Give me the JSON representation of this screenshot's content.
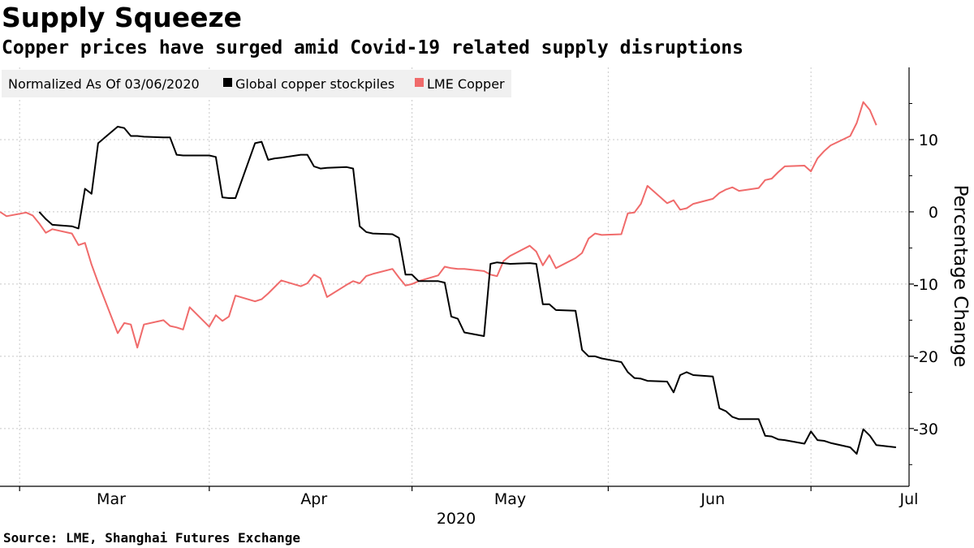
{
  "title": "Supply Squeeze",
  "subtitle": "Copper prices have surged amid Covid-19 related supply disruptions",
  "source": "Source: LME, Shanghai Futures Exchange",
  "colors": {
    "stockpiles": "#000000",
    "lme": "#f06b6b",
    "legend_bg": "#f0f0f0",
    "grid": "#c8c8c8"
  },
  "chart_data": {
    "type": "line",
    "legend_position": "top-left",
    "legend_note": "Normalized As Of 03/06/2020",
    "ylabel": "Percentage Change",
    "y_axis_side": "right",
    "ylim": [
      -38,
      20
    ],
    "y_ticks": [
      10,
      0,
      -10,
      -20,
      -30
    ],
    "y_tick_labels": [
      "10",
      "0",
      "-10",
      "-20",
      "-30"
    ],
    "xlim": [
      "2020-02-13",
      "2020-07-01"
    ],
    "x_ticks": [
      {
        "label": "Mar",
        "date": "2020-03-01"
      },
      {
        "label": "Apr",
        "date": "2020-04-01"
      },
      {
        "label": "May",
        "date": "2020-05-01"
      },
      {
        "label": "Jun",
        "date": "2020-06-01"
      },
      {
        "label": "Jul",
        "date": "2020-07-01"
      }
    ],
    "x_gridlines": [
      "2020-02-16",
      "2020-03-16",
      "2020-04-16",
      "2020-05-16",
      "2020-06-16"
    ],
    "x_year_label": "2020",
    "grid": true,
    "series": [
      {
        "name": "Global copper stockpiles",
        "points": [
          [
            "2020-02-19",
            0.0
          ],
          [
            "2020-02-20",
            -1.0
          ],
          [
            "2020-02-21",
            -1.8
          ],
          [
            "2020-02-24",
            -2.0
          ],
          [
            "2020-02-25",
            -2.3
          ],
          [
            "2020-02-26",
            3.2
          ],
          [
            "2020-02-27",
            2.5
          ],
          [
            "2020-02-28",
            9.5
          ],
          [
            "2020-03-02",
            11.8
          ],
          [
            "2020-03-03",
            11.6
          ],
          [
            "2020-03-04",
            10.5
          ],
          [
            "2020-03-05",
            10.5
          ],
          [
            "2020-03-06",
            10.4
          ],
          [
            "2020-03-09",
            10.3
          ],
          [
            "2020-03-10",
            10.3
          ],
          [
            "2020-03-11",
            7.9
          ],
          [
            "2020-03-12",
            7.8
          ],
          [
            "2020-03-13",
            7.8
          ],
          [
            "2020-03-16",
            7.8
          ],
          [
            "2020-03-17",
            7.6
          ],
          [
            "2020-03-18",
            2.0
          ],
          [
            "2020-03-19",
            1.9
          ],
          [
            "2020-03-20",
            1.9
          ],
          [
            "2020-03-23",
            9.5
          ],
          [
            "2020-03-24",
            9.7
          ],
          [
            "2020-03-25",
            7.2
          ],
          [
            "2020-03-26",
            7.4
          ],
          [
            "2020-03-27",
            7.5
          ],
          [
            "2020-03-30",
            7.9
          ],
          [
            "2020-03-31",
            7.9
          ],
          [
            "2020-04-01",
            6.3
          ],
          [
            "2020-04-02",
            6.0
          ],
          [
            "2020-04-03",
            6.1
          ],
          [
            "2020-04-06",
            6.2
          ],
          [
            "2020-04-07",
            6.0
          ],
          [
            "2020-04-08",
            -2.0
          ],
          [
            "2020-04-09",
            -2.8
          ],
          [
            "2020-04-10",
            -3.0
          ],
          [
            "2020-04-13",
            -3.1
          ],
          [
            "2020-04-14",
            -3.6
          ],
          [
            "2020-04-15",
            -8.7
          ],
          [
            "2020-04-16",
            -8.7
          ],
          [
            "2020-04-17",
            -9.6
          ],
          [
            "2020-04-20",
            -9.6
          ],
          [
            "2020-04-21",
            -9.8
          ],
          [
            "2020-04-22",
            -14.5
          ],
          [
            "2020-04-23",
            -14.8
          ],
          [
            "2020-04-24",
            -16.7
          ],
          [
            "2020-04-27",
            -17.2
          ],
          [
            "2020-04-28",
            -7.2
          ],
          [
            "2020-04-29",
            -7.0
          ],
          [
            "2020-04-30",
            -7.1
          ],
          [
            "2020-05-01",
            -7.2
          ],
          [
            "2020-05-04",
            -7.1
          ],
          [
            "2020-05-05",
            -7.2
          ],
          [
            "2020-05-06",
            -12.8
          ],
          [
            "2020-05-07",
            -12.8
          ],
          [
            "2020-05-08",
            -13.6
          ],
          [
            "2020-05-11",
            -13.7
          ],
          [
            "2020-05-12",
            -19.1
          ],
          [
            "2020-05-13",
            -20.0
          ],
          [
            "2020-05-14",
            -20.0
          ],
          [
            "2020-05-15",
            -20.3
          ],
          [
            "2020-05-18",
            -20.8
          ],
          [
            "2020-05-19",
            -22.2
          ],
          [
            "2020-05-20",
            -23.0
          ],
          [
            "2020-05-21",
            -23.1
          ],
          [
            "2020-05-22",
            -23.4
          ],
          [
            "2020-05-25",
            -23.5
          ],
          [
            "2020-05-26",
            -25.0
          ],
          [
            "2020-05-27",
            -22.6
          ],
          [
            "2020-05-28",
            -22.2
          ],
          [
            "2020-05-29",
            -22.6
          ],
          [
            "2020-06-01",
            -22.8
          ],
          [
            "2020-06-02",
            -27.2
          ],
          [
            "2020-06-03",
            -27.6
          ],
          [
            "2020-06-04",
            -28.4
          ],
          [
            "2020-06-05",
            -28.7
          ],
          [
            "2020-06-08",
            -28.7
          ],
          [
            "2020-06-09",
            -31.0
          ],
          [
            "2020-06-10",
            -31.1
          ],
          [
            "2020-06-11",
            -31.5
          ],
          [
            "2020-06-12",
            -31.6
          ],
          [
            "2020-06-15",
            -32.1
          ],
          [
            "2020-06-16",
            -30.4
          ],
          [
            "2020-06-17",
            -31.6
          ],
          [
            "2020-06-18",
            -31.7
          ],
          [
            "2020-06-19",
            -32.0
          ],
          [
            "2020-06-22",
            -32.6
          ],
          [
            "2020-06-23",
            -33.5
          ],
          [
            "2020-06-24",
            -30.1
          ],
          [
            "2020-06-25",
            -31.0
          ],
          [
            "2020-06-26",
            -32.3
          ],
          [
            "2020-06-29",
            -32.6
          ]
        ]
      },
      {
        "name": "LME Copper",
        "points": [
          [
            "2020-02-13",
            0.0
          ],
          [
            "2020-02-14",
            -0.6
          ],
          [
            "2020-02-17",
            -0.1
          ],
          [
            "2020-02-18",
            -0.5
          ],
          [
            "2020-02-19",
            -1.6
          ],
          [
            "2020-02-20",
            -2.9
          ],
          [
            "2020-02-21",
            -2.4
          ],
          [
            "2020-02-24",
            -3.0
          ],
          [
            "2020-02-25",
            -4.6
          ],
          [
            "2020-02-26",
            -4.3
          ],
          [
            "2020-02-27",
            -7.3
          ],
          [
            "2020-02-28",
            -9.8
          ],
          [
            "2020-03-02",
            -16.8
          ],
          [
            "2020-03-03",
            -15.4
          ],
          [
            "2020-03-04",
            -15.6
          ],
          [
            "2020-03-05",
            -18.8
          ],
          [
            "2020-03-06",
            -15.6
          ],
          [
            "2020-03-09",
            -15.0
          ],
          [
            "2020-03-10",
            -15.8
          ],
          [
            "2020-03-11",
            -16.0
          ],
          [
            "2020-03-12",
            -16.3
          ],
          [
            "2020-03-13",
            -13.2
          ],
          [
            "2020-03-16",
            -15.9
          ],
          [
            "2020-03-17",
            -14.3
          ],
          [
            "2020-03-18",
            -15.1
          ],
          [
            "2020-03-19",
            -14.5
          ],
          [
            "2020-03-20",
            -11.6
          ],
          [
            "2020-03-23",
            -12.4
          ],
          [
            "2020-03-24",
            -12.1
          ],
          [
            "2020-03-25",
            -11.3
          ],
          [
            "2020-03-26",
            -10.4
          ],
          [
            "2020-03-27",
            -9.5
          ],
          [
            "2020-03-30",
            -10.3
          ],
          [
            "2020-03-31",
            -9.9
          ],
          [
            "2020-04-01",
            -8.7
          ],
          [
            "2020-04-02",
            -9.2
          ],
          [
            "2020-04-03",
            -11.8
          ],
          [
            "2020-04-06",
            -10.1
          ],
          [
            "2020-04-07",
            -9.6
          ],
          [
            "2020-04-08",
            -9.9
          ],
          [
            "2020-04-09",
            -8.9
          ],
          [
            "2020-04-10",
            -8.6
          ],
          [
            "2020-04-13",
            -7.9
          ],
          [
            "2020-04-14",
            -9.1
          ],
          [
            "2020-04-15",
            -10.2
          ],
          [
            "2020-04-16",
            -10.0
          ],
          [
            "2020-04-17",
            -9.6
          ],
          [
            "2020-04-20",
            -8.8
          ],
          [
            "2020-04-21",
            -7.6
          ],
          [
            "2020-04-22",
            -7.8
          ],
          [
            "2020-04-23",
            -7.9
          ],
          [
            "2020-04-24",
            -7.9
          ],
          [
            "2020-04-27",
            -8.2
          ],
          [
            "2020-04-28",
            -8.7
          ],
          [
            "2020-04-29",
            -8.9
          ],
          [
            "2020-04-30",
            -6.8
          ],
          [
            "2020-05-01",
            -6.1
          ],
          [
            "2020-05-04",
            -4.7
          ],
          [
            "2020-05-05",
            -5.5
          ],
          [
            "2020-05-06",
            -7.4
          ],
          [
            "2020-05-07",
            -6.0
          ],
          [
            "2020-05-08",
            -7.8
          ],
          [
            "2020-05-11",
            -6.4
          ],
          [
            "2020-05-12",
            -5.7
          ],
          [
            "2020-05-13",
            -3.7
          ],
          [
            "2020-05-14",
            -3.0
          ],
          [
            "2020-05-15",
            -3.2
          ],
          [
            "2020-05-18",
            -3.1
          ],
          [
            "2020-05-19",
            -0.2
          ],
          [
            "2020-05-20",
            -0.1
          ],
          [
            "2020-05-21",
            1.1
          ],
          [
            "2020-05-22",
            3.6
          ],
          [
            "2020-05-25",
            1.2
          ],
          [
            "2020-05-26",
            1.6
          ],
          [
            "2020-05-27",
            0.3
          ],
          [
            "2020-05-28",
            0.5
          ],
          [
            "2020-05-29",
            1.1
          ],
          [
            "2020-06-01",
            1.8
          ],
          [
            "2020-06-02",
            2.6
          ],
          [
            "2020-06-03",
            3.1
          ],
          [
            "2020-06-04",
            3.4
          ],
          [
            "2020-06-05",
            2.9
          ],
          [
            "2020-06-08",
            3.3
          ],
          [
            "2020-06-09",
            4.4
          ],
          [
            "2020-06-10",
            4.6
          ],
          [
            "2020-06-11",
            5.5
          ],
          [
            "2020-06-12",
            6.3
          ],
          [
            "2020-06-15",
            6.4
          ],
          [
            "2020-06-16",
            5.6
          ],
          [
            "2020-06-17",
            7.4
          ],
          [
            "2020-06-18",
            8.4
          ],
          [
            "2020-06-19",
            9.2
          ],
          [
            "2020-06-22",
            10.5
          ],
          [
            "2020-06-23",
            12.3
          ],
          [
            "2020-06-24",
            15.2
          ],
          [
            "2020-06-25",
            14.1
          ],
          [
            "2020-06-26",
            12.0
          ]
        ]
      }
    ]
  }
}
